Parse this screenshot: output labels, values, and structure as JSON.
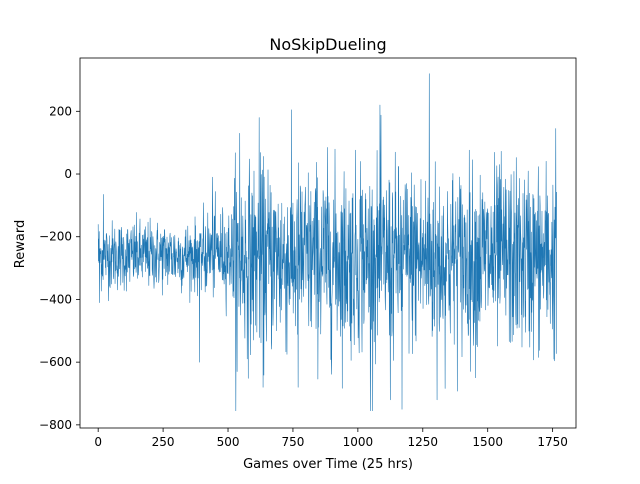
{
  "chart_data": {
    "type": "line",
    "title": "NoSkipDueling",
    "xlabel": "Games over Time (25 hrs)",
    "ylabel": "Reward",
    "xlim": [
      -70,
      1840
    ],
    "ylim": [
      -810,
      370
    ],
    "xticks": [
      0,
      250,
      500,
      750,
      1000,
      1250,
      1500,
      1750
    ],
    "xtick_labels": [
      "0",
      "250",
      "500",
      "750",
      "1000",
      "1250",
      "1500",
      "1750"
    ],
    "yticks": [
      -800,
      -600,
      -400,
      -200,
      0,
      200
    ],
    "ytick_labels": [
      "−800",
      "−600",
      "−400",
      "−200",
      "0",
      "200"
    ],
    "grid": false,
    "line_color": "#1f77b4",
    "series": [
      {
        "name": "",
        "x_start": 0,
        "x_end": 1765,
        "n_points": 1766,
        "segments": [
          {
            "x_from": 0,
            "x_to": 380,
            "center": -260,
            "spread": 55,
            "min": -410,
            "max": -65
          },
          {
            "x_from": 380,
            "x_to": 400,
            "center": -250,
            "spread": 60,
            "min": -600,
            "max": -190
          },
          {
            "x_from": 400,
            "x_to": 520,
            "center": -250,
            "spread": 70,
            "min": -470,
            "max": -10
          },
          {
            "x_from": 520,
            "x_to": 1765,
            "center": -270,
            "spread": 145,
            "min": -755,
            "max": 320
          }
        ],
        "spikes": [
          {
            "x": 0,
            "y": -160
          },
          {
            "x": 5,
            "y": -410
          },
          {
            "x": 20,
            "y": -65
          },
          {
            "x": 390,
            "y": -600
          },
          {
            "x": 440,
            "y": -10
          },
          {
            "x": 535,
            "y": -630
          },
          {
            "x": 545,
            "y": 130
          },
          {
            "x": 620,
            "y": 180
          },
          {
            "x": 635,
            "y": -680
          },
          {
            "x": 770,
            "y": -680
          },
          {
            "x": 1010,
            "y": 40
          },
          {
            "x": 1048,
            "y": -755
          },
          {
            "x": 1085,
            "y": 220
          },
          {
            "x": 1125,
            "y": -720
          },
          {
            "x": 1170,
            "y": -750
          },
          {
            "x": 1275,
            "y": 320
          },
          {
            "x": 1305,
            "y": -720
          },
          {
            "x": 1545,
            "y": 30
          },
          {
            "x": 1755,
            "y": -590
          },
          {
            "x": 1762,
            "y": 145
          }
        ]
      }
    ]
  }
}
